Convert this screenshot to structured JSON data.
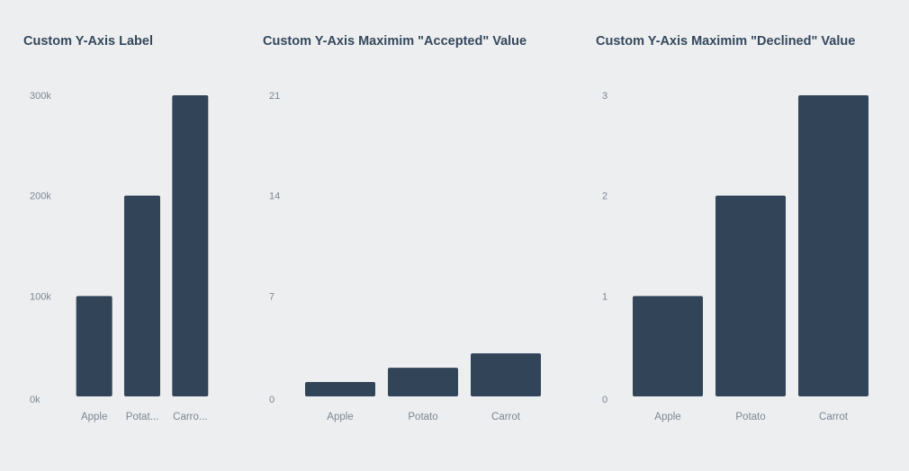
{
  "chart_data": [
    {
      "type": "bar",
      "title": "Custom Y-Axis Label",
      "categories": [
        "Apple",
        "Potato",
        "Carrot"
      ],
      "category_tick_labels": [
        "Apple",
        "Potat...",
        "Carro..."
      ],
      "values": [
        100000,
        200000,
        300000
      ],
      "ylim": [
        0,
        300000
      ],
      "yticks": [
        0,
        100000,
        200000,
        300000
      ],
      "ytick_labels": [
        "0k",
        "100k",
        "200k",
        "300k"
      ],
      "xlabel": "",
      "ylabel": "",
      "grid": false
    },
    {
      "type": "bar",
      "title": "Custom Y-Axis Maximim \"Accepted\" Value",
      "categories": [
        "Apple",
        "Potato",
        "Carrot"
      ],
      "category_tick_labels": [
        "Apple",
        "Potato",
        "Carrot"
      ],
      "values": [
        1,
        2,
        3
      ],
      "ylim": [
        0,
        21
      ],
      "yticks": [
        0,
        7,
        14,
        21
      ],
      "ytick_labels": [
        "0",
        "7",
        "14",
        "21"
      ],
      "xlabel": "",
      "ylabel": "",
      "grid": false
    },
    {
      "type": "bar",
      "title": "Custom Y-Axis Maximim \"Declined\" Value",
      "categories": [
        "Apple",
        "Potato",
        "Carrot"
      ],
      "category_tick_labels": [
        "Apple",
        "Potato",
        "Carrot"
      ],
      "values": [
        1,
        2,
        3
      ],
      "ylim": [
        0,
        3
      ],
      "yticks": [
        0,
        1,
        2,
        3
      ],
      "ytick_labels": [
        "0",
        "1",
        "2",
        "3"
      ],
      "xlabel": "",
      "ylabel": "",
      "grid": false
    }
  ],
  "colors": {
    "background": "#edeef0",
    "bar": "#324457",
    "title": "#34475c",
    "tick_label": "#7b8794"
  }
}
